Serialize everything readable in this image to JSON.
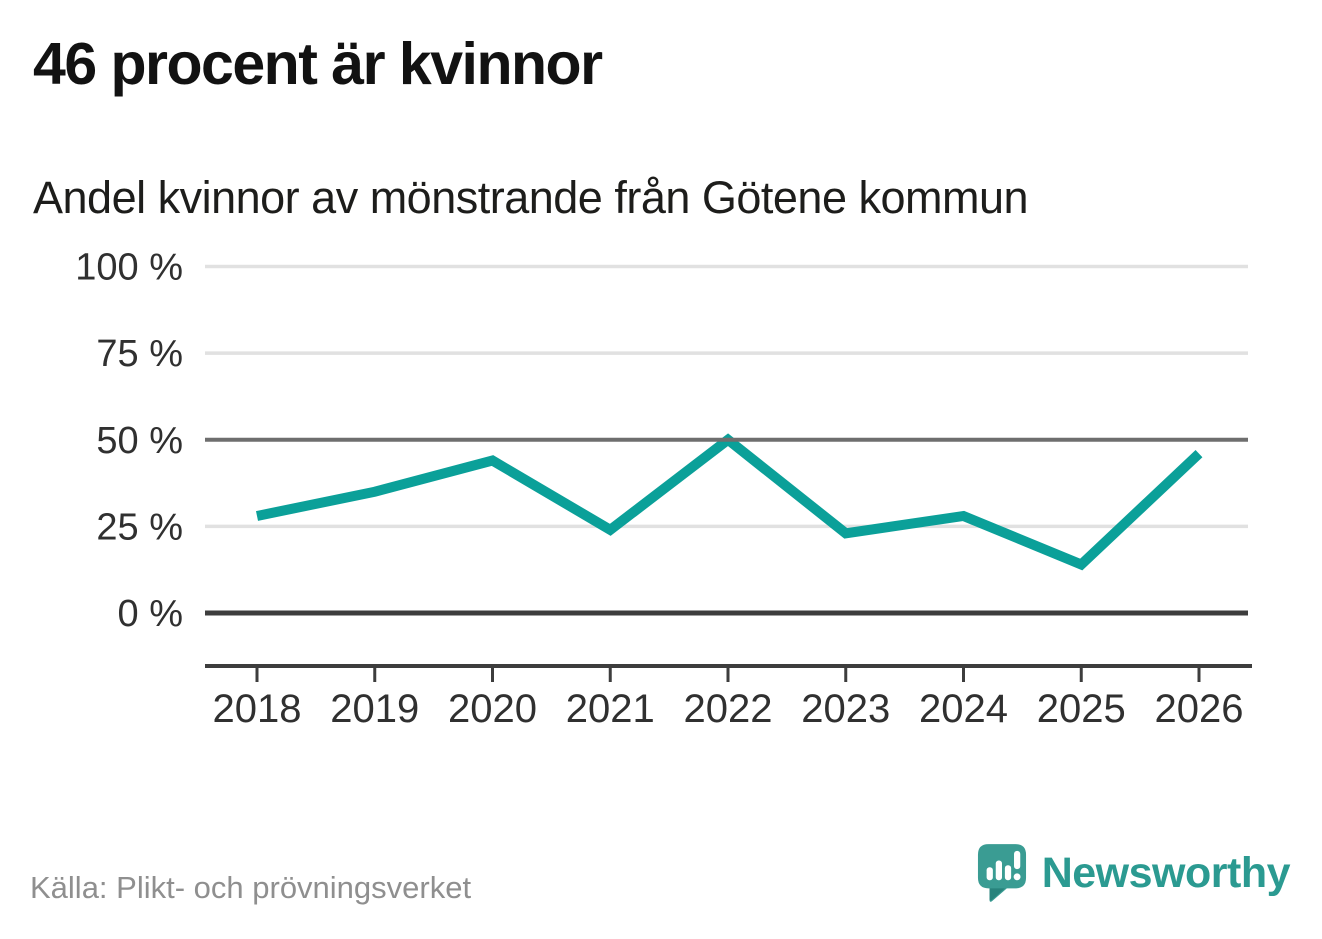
{
  "header": {
    "title": "46 procent är kvinnor",
    "subtitle": "Andel kvinnor av mönstrande från Götene kommun"
  },
  "chart_data": {
    "type": "line",
    "title": "46 procent är kvinnor",
    "subtitle": "Andel kvinnor av mönstrande från Götene kommun",
    "categories": [
      "2018",
      "2019",
      "2020",
      "2021",
      "2022",
      "2023",
      "2024",
      "2025",
      "2026"
    ],
    "series": [
      {
        "name": "Andel kvinnor av mönstrande",
        "values": [
          28,
          35,
          44,
          24,
          50,
          23,
          28,
          14,
          46
        ]
      }
    ],
    "unit": "%",
    "ylim": [
      0,
      100
    ],
    "yticks": [
      {
        "value": 100,
        "label": "100 %"
      },
      {
        "value": 75,
        "label": "75 %"
      },
      {
        "value": 50,
        "label": "50 %"
      },
      {
        "value": 25,
        "label": "25 %"
      },
      {
        "value": 0,
        "label": "0 %"
      }
    ],
    "emphasized_gridlines": [
      50,
      0
    ],
    "grid": true,
    "legend_position": "none",
    "colors": {
      "line": "#0ba099",
      "grid_light": "#e1e1e1",
      "grid_mid": "#6e6e6e",
      "axis": "#3d3d3d",
      "tick_label": "#303030"
    }
  },
  "footer": {
    "source": "Källa: Plikt- och prövningsverket",
    "brand": "Newsworthy",
    "brand_color": "#2b9a91"
  }
}
